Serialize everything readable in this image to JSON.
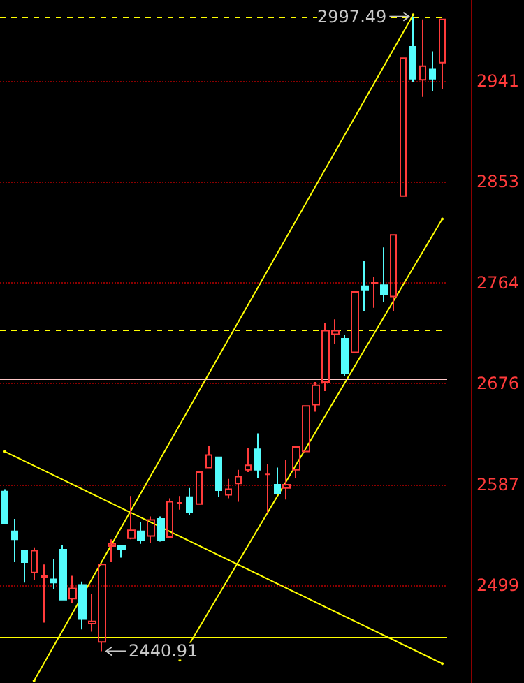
{
  "chart_data": {
    "type": "candlestick",
    "categories": [
      null,
      null,
      null,
      null,
      null,
      null,
      null,
      null,
      null,
      null,
      null,
      null,
      null,
      null,
      null,
      null,
      null,
      null,
      null,
      null,
      null,
      null,
      null,
      null,
      null,
      null,
      null,
      null,
      null,
      null,
      null,
      null,
      null,
      null,
      null,
      null,
      null,
      null,
      null,
      null,
      null,
      null,
      null,
      null,
      null,
      null
    ],
    "ohlc": [
      [
        2581,
        2583,
        2552,
        2553
      ],
      [
        2546,
        2557,
        2519,
        2539
      ],
      [
        2529,
        2530,
        2501,
        2519
      ],
      [
        2510,
        2532,
        2503,
        2529
      ],
      [
        2506,
        2517,
        2466,
        2507
      ],
      [
        2504,
        2522,
        2495,
        2501
      ],
      [
        2530,
        2534,
        2486,
        2486
      ],
      [
        2487,
        2507,
        2483,
        2496
      ],
      [
        2499,
        2502,
        2460,
        2469
      ],
      [
        2465,
        2491,
        2458,
        2467
      ],
      [
        2449,
        2517,
        2440.91,
        2517
      ],
      [
        2533,
        2539,
        2519,
        2535
      ],
      [
        2533,
        2534,
        2523,
        2530
      ],
      [
        2540,
        2577,
        2539,
        2547
      ],
      [
        2546,
        2554,
        2535,
        2538
      ],
      [
        2542,
        2559,
        2536,
        2556
      ],
      [
        2557,
        2559,
        2537,
        2538
      ],
      [
        2541,
        2575,
        2541,
        2572
      ],
      [
        2571,
        2577,
        2565,
        2571
      ],
      [
        2576,
        2584,
        2560,
        2563
      ],
      [
        2570,
        2598,
        2570,
        2598
      ],
      [
        2602,
        2621,
        2602,
        2613
      ],
      [
        2611,
        2611,
        2576,
        2582
      ],
      [
        2578,
        2592,
        2575,
        2583
      ],
      [
        2588,
        2600,
        2572,
        2594
      ],
      [
        2600,
        2619,
        2598,
        2604
      ],
      [
        2618,
        2632,
        2593,
        2600
      ],
      [
        2596,
        2605,
        2562,
        2596
      ],
      [
        2587,
        2602,
        2579,
        2579
      ],
      [
        2584,
        2609,
        2574,
        2587
      ],
      [
        2600,
        2620,
        2593,
        2620
      ],
      [
        2616,
        2656,
        2616,
        2656
      ],
      [
        2657,
        2677,
        2651,
        2674
      ],
      [
        2677,
        2729,
        2669,
        2722
      ],
      [
        2719,
        2732,
        2710,
        2722
      ],
      [
        2715,
        2718,
        2682,
        2685
      ],
      [
        2703,
        2756,
        2703,
        2756
      ],
      [
        2761,
        2783,
        2739,
        2758
      ],
      [
        2764,
        2769,
        2742,
        2764
      ],
      [
        2762,
        2795,
        2747,
        2754
      ],
      [
        2752,
        2806,
        2739,
        2806
      ],
      [
        2840,
        2961,
        2840,
        2961
      ],
      [
        2971,
        2997.49,
        2940,
        2943
      ],
      [
        2942,
        2995,
        2927,
        2954
      ],
      [
        2951,
        2967,
        2932,
        2943
      ],
      [
        2957,
        2995,
        2934,
        2995
      ]
    ],
    "colors": [
      "#54fcfc",
      "#54fcfc",
      "#54fcfc",
      "#ff3b3b",
      "#ff3b3b",
      "#54fcfc",
      "#54fcfc",
      "#ff3b3b",
      "#54fcfc",
      "#ff3b3b",
      "#ff3b3b",
      "#ff3b3b",
      "#54fcfc",
      "#ff3b3b",
      "#54fcfc",
      "#ff3b3b",
      "#54fcfc",
      "#ff3b3b",
      "#ff3b3b",
      "#54fcfc",
      "#ff3b3b",
      "#ff3b3b",
      "#54fcfc",
      "#ff3b3b",
      "#ff3b3b",
      "#ff3b3b",
      "#54fcfc",
      "#ff3b3b",
      "#54fcfc",
      "#ff3b3b",
      "#ff3b3b",
      "#ff3b3b",
      "#ff3b3b",
      "#ff3b3b",
      "#ff3b3b",
      "#54fcfc",
      "#ff3b3b",
      "#54fcfc",
      "#ff3b3b",
      "#54fcfc",
      "#ff3b3b",
      "#ff3b3b",
      "#54fcfc",
      "#ff3b3b",
      "#54fcfc",
      "#ff3b3b"
    ],
    "series": [
      {
        "type": "line",
        "color": "#ffff00",
        "values": [
          null,
          null,
          null,
          2415,
          null,
          null,
          null,
          null,
          null,
          null,
          null,
          null,
          null,
          null,
          null,
          null,
          null,
          null,
          null,
          null,
          null,
          null,
          null,
          null,
          null,
          null,
          null,
          null,
          null,
          null,
          null,
          null,
          null,
          null,
          null,
          null,
          null,
          null,
          null,
          null,
          null,
          null,
          2999,
          null,
          null,
          null
        ]
      },
      {
        "type": "line",
        "color": "#ffff00",
        "values": [
          null,
          null,
          null,
          null,
          null,
          null,
          null,
          null,
          null,
          null,
          null,
          null,
          null,
          null,
          null,
          null,
          null,
          null,
          2433,
          null,
          null,
          null,
          null,
          null,
          null,
          null,
          null,
          null,
          null,
          null,
          null,
          null,
          null,
          null,
          null,
          null,
          null,
          null,
          null,
          null,
          null,
          null,
          null,
          null,
          null,
          2820
        ]
      },
      {
        "type": "line",
        "color": "#ffff00",
        "values": [
          2616,
          null,
          null,
          null,
          null,
          null,
          null,
          null,
          null,
          null,
          null,
          null,
          null,
          null,
          null,
          null,
          null,
          null,
          null,
          null,
          null,
          null,
          null,
          null,
          null,
          null,
          null,
          null,
          null,
          null,
          null,
          null,
          null,
          null,
          null,
          null,
          null,
          null,
          null,
          null,
          null,
          null,
          null,
          null,
          null,
          2430
        ]
      }
    ],
    "ylim": [
      2413,
      3012
    ],
    "yticks": [
      2499,
      2587,
      2676,
      2764,
      2853,
      2941
    ],
    "grid": "y",
    "tick_labels": "y",
    "ref_lines": [
      {
        "axis": "y",
        "value": 2997.49,
        "color": "#ffff00",
        "line_style": "dashed"
      },
      {
        "axis": "y",
        "value": 2722,
        "color": "#ffff00",
        "line_style": "dashed"
      },
      {
        "axis": "y",
        "value": 2680,
        "color": "#ffc8c8",
        "line_style": "solid"
      },
      {
        "axis": "y",
        "value": 2453,
        "color": "#ffff00",
        "line_style": "solid"
      }
    ],
    "annotations": [
      "2997.49",
      "2440.91"
    ]
  }
}
